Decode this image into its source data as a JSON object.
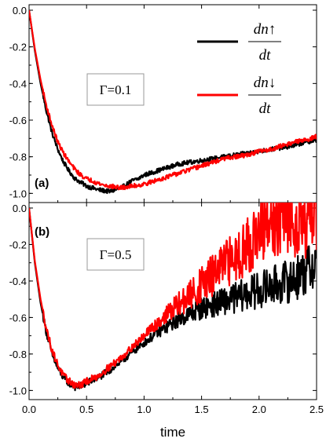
{
  "chart_data": [
    {
      "type": "line",
      "panel_label": "(a)",
      "annotation": "Γ=0.1",
      "xlim": [
        0,
        2.5
      ],
      "ylim": [
        -1.05,
        0.03
      ],
      "x_ticks": [
        "0.0",
        "0.5",
        "1.0",
        "1.5",
        "2.0",
        "2.5"
      ],
      "y_ticks": [
        "0.0",
        "-0.2",
        "-0.4",
        "-0.6",
        "-0.8",
        "-1.0"
      ],
      "noise_amplitude": 0.012,
      "series": [
        {
          "legend_numerator": "dn↑",
          "legend_denominator": "dt",
          "color": "#000000",
          "x": [
            0,
            0.05,
            0.1,
            0.15,
            0.2,
            0.25,
            0.3,
            0.35,
            0.4,
            0.45,
            0.5,
            0.55,
            0.6,
            0.65,
            0.7,
            0.75,
            0.8,
            0.85,
            0.9,
            0.95,
            1.0,
            1.1,
            1.2,
            1.3,
            1.4,
            1.5,
            1.6,
            1.7,
            1.8,
            1.9,
            2.0,
            2.1,
            2.2,
            2.3,
            2.4,
            2.5
          ],
          "y": [
            0,
            -0.22,
            -0.4,
            -0.55,
            -0.67,
            -0.76,
            -0.83,
            -0.88,
            -0.92,
            -0.94,
            -0.96,
            -0.97,
            -0.98,
            -0.985,
            -0.99,
            -0.98,
            -0.97,
            -0.95,
            -0.93,
            -0.92,
            -0.9,
            -0.88,
            -0.86,
            -0.84,
            -0.83,
            -0.82,
            -0.81,
            -0.8,
            -0.79,
            -0.78,
            -0.77,
            -0.76,
            -0.75,
            -0.74,
            -0.72,
            -0.71
          ]
        },
        {
          "legend_numerator": "dn↓",
          "legend_denominator": "dt",
          "color": "#ff0000",
          "x": [
            0,
            0.05,
            0.1,
            0.15,
            0.2,
            0.25,
            0.3,
            0.35,
            0.4,
            0.45,
            0.5,
            0.55,
            0.6,
            0.65,
            0.7,
            0.75,
            0.8,
            0.85,
            0.9,
            0.95,
            1.0,
            1.1,
            1.2,
            1.3,
            1.4,
            1.5,
            1.6,
            1.7,
            1.8,
            1.9,
            2.0,
            2.1,
            2.2,
            2.3,
            2.4,
            2.5
          ],
          "y": [
            0,
            -0.21,
            -0.38,
            -0.52,
            -0.63,
            -0.72,
            -0.78,
            -0.83,
            -0.87,
            -0.9,
            -0.92,
            -0.93,
            -0.945,
            -0.955,
            -0.96,
            -0.965,
            -0.97,
            -0.965,
            -0.96,
            -0.955,
            -0.95,
            -0.93,
            -0.91,
            -0.89,
            -0.87,
            -0.85,
            -0.83,
            -0.81,
            -0.8,
            -0.79,
            -0.77,
            -0.76,
            -0.74,
            -0.72,
            -0.71,
            -0.69
          ]
        }
      ]
    },
    {
      "type": "line",
      "panel_label": "(b)",
      "annotation": "Γ=0.5",
      "xlim": [
        0,
        2.5
      ],
      "xlabel": "time",
      "ylim": [
        -1.05,
        0.03
      ],
      "x_ticks": [
        "0.0",
        "0.5",
        "1.0",
        "1.5",
        "2.0",
        "2.5"
      ],
      "y_ticks": [
        "0.0",
        "-0.2",
        "-0.4",
        "-0.6",
        "-0.8",
        "-1.0"
      ],
      "series": [
        {
          "color": "#000000",
          "noise_amplitude": 0.02,
          "noise_growth": 0.08,
          "x": [
            0,
            0.05,
            0.1,
            0.15,
            0.2,
            0.25,
            0.3,
            0.35,
            0.4,
            0.45,
            0.5,
            0.55,
            0.6,
            0.7,
            0.8,
            0.9,
            1.0,
            1.1,
            1.2,
            1.3,
            1.4,
            1.5,
            1.6,
            1.7,
            1.8,
            1.9,
            2.0,
            2.1,
            2.2,
            2.3,
            2.4,
            2.5
          ],
          "y": [
            0,
            -0.3,
            -0.52,
            -0.68,
            -0.8,
            -0.88,
            -0.93,
            -0.96,
            -0.98,
            -0.975,
            -0.96,
            -0.945,
            -0.93,
            -0.89,
            -0.84,
            -0.79,
            -0.74,
            -0.69,
            -0.65,
            -0.61,
            -0.58,
            -0.55,
            -0.53,
            -0.51,
            -0.49,
            -0.47,
            -0.45,
            -0.43,
            -0.41,
            -0.39,
            -0.35,
            -0.3
          ]
        },
        {
          "color": "#ff0000",
          "noise_amplitude": 0.02,
          "noise_growth": 0.16,
          "x": [
            0,
            0.05,
            0.1,
            0.15,
            0.2,
            0.25,
            0.3,
            0.35,
            0.4,
            0.45,
            0.5,
            0.55,
            0.6,
            0.7,
            0.8,
            0.9,
            1.0,
            1.1,
            1.2,
            1.3,
            1.4,
            1.5,
            1.6,
            1.7,
            1.8,
            1.9,
            2.0,
            2.1,
            2.2,
            2.3,
            2.4,
            2.5
          ],
          "y": [
            0,
            -0.29,
            -0.5,
            -0.66,
            -0.78,
            -0.86,
            -0.92,
            -0.95,
            -0.97,
            -0.97,
            -0.95,
            -0.935,
            -0.92,
            -0.87,
            -0.82,
            -0.76,
            -0.7,
            -0.64,
            -0.58,
            -0.53,
            -0.48,
            -0.42,
            -0.37,
            -0.32,
            -0.26,
            -0.2,
            -0.15,
            -0.1,
            -0.05,
            -0.04,
            -0.03,
            -0.02
          ]
        }
      ]
    }
  ]
}
